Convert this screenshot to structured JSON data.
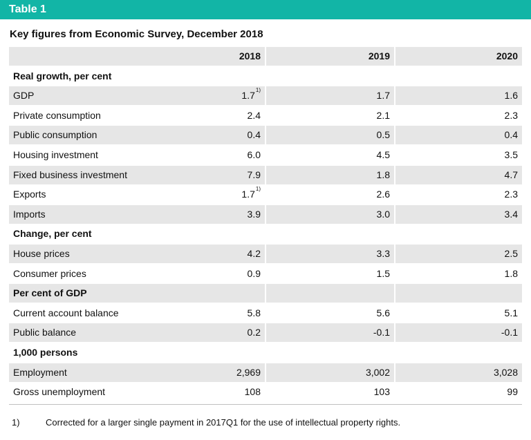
{
  "banner": {
    "title": "Table 1"
  },
  "subtitle": "Key figures from Economic Survey, December 2018",
  "colors": {
    "banner": "#12b5a6",
    "shade": "#e6e6e6"
  },
  "table": {
    "headers": [
      "",
      "2018",
      "2019",
      "2020"
    ],
    "rows": [
      {
        "label": "Real growth, per cent",
        "section": true,
        "values": [
          "",
          "",
          ""
        ]
      },
      {
        "label": "GDP",
        "values": [
          "1.7",
          "1.7",
          "1.6"
        ],
        "note0": "1)"
      },
      {
        "label": "Private consumption",
        "values": [
          "2.4",
          "2.1",
          "2.3"
        ]
      },
      {
        "label": "Public consumption",
        "values": [
          "0.4",
          "0.5",
          "0.4"
        ]
      },
      {
        "label": "Housing investment",
        "values": [
          "6.0",
          "4.5",
          "3.5"
        ]
      },
      {
        "label": "Fixed business investment",
        "values": [
          "7.9",
          "1.8",
          "4.7"
        ]
      },
      {
        "label": "Exports",
        "values": [
          "1.7",
          "2.6",
          "2.3"
        ],
        "note0": "1)"
      },
      {
        "label": "Imports",
        "values": [
          "3.9",
          "3.0",
          "3.4"
        ]
      },
      {
        "label": "Change, per cent",
        "section": true,
        "values": [
          "",
          "",
          ""
        ]
      },
      {
        "label": "House prices",
        "values": [
          "4.2",
          "3.3",
          "2.5"
        ]
      },
      {
        "label": "Consumer prices",
        "values": [
          "0.9",
          "1.5",
          "1.8"
        ]
      },
      {
        "label": "Per cent of GDP",
        "section": true,
        "values": [
          "",
          "",
          ""
        ]
      },
      {
        "label": "Current account balance",
        "values": [
          "5.8",
          "5.6",
          "5.1"
        ]
      },
      {
        "label": "Public balance",
        "values": [
          "0.2",
          "-0.1",
          "-0.1"
        ]
      },
      {
        "label": "1,000 persons",
        "section": true,
        "values": [
          "",
          "",
          ""
        ]
      },
      {
        "label": "Employment",
        "values": [
          "2,969",
          "3,002",
          "3,028"
        ]
      },
      {
        "label": "Gross unemployment",
        "values": [
          "108",
          "103",
          "99"
        ]
      }
    ]
  },
  "footnote": {
    "number": "1)",
    "text": "Corrected for a larger single payment in 2017Q1 for the use of intellectual property rights."
  }
}
